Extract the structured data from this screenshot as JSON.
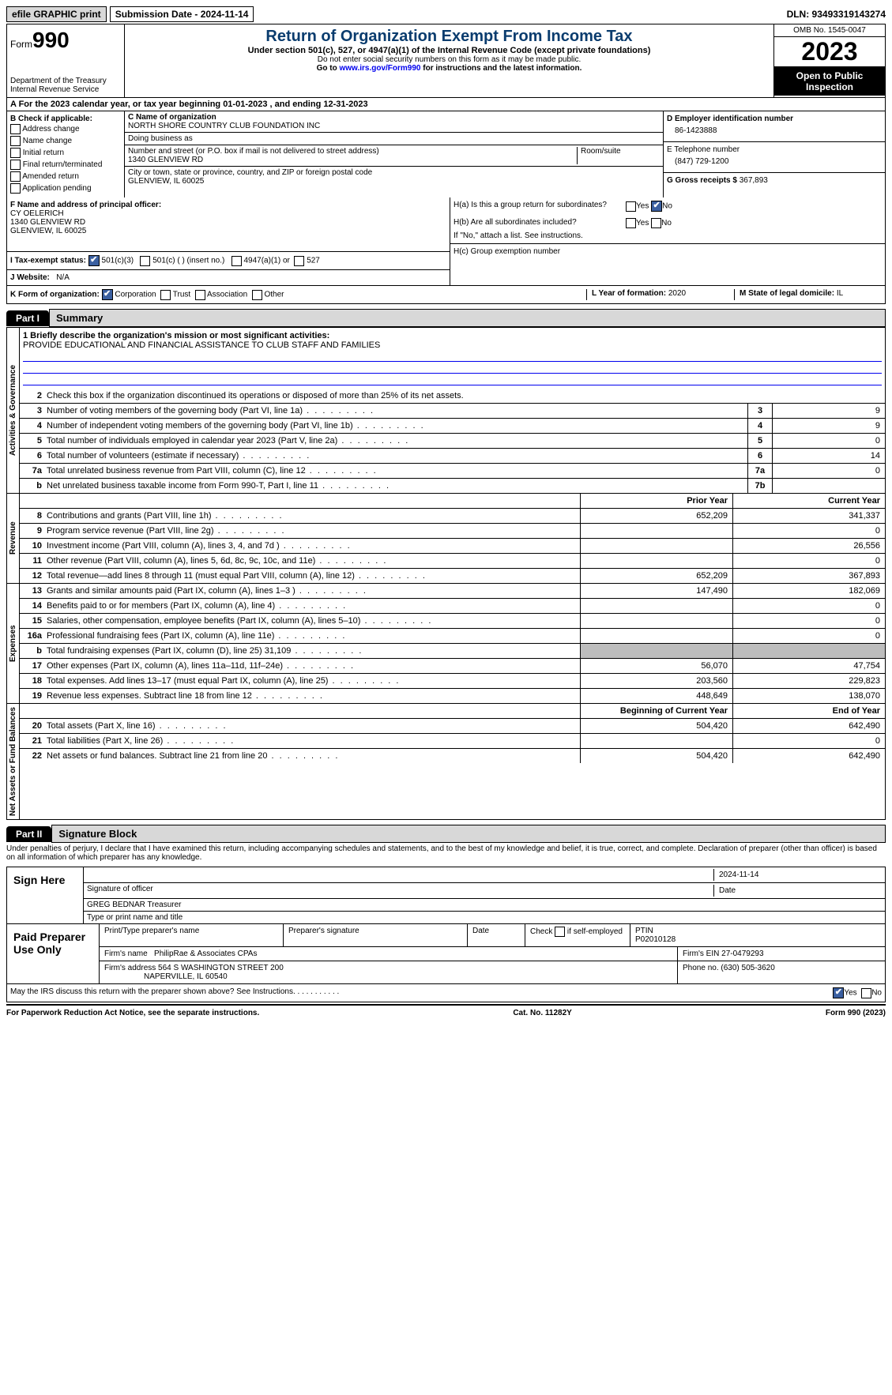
{
  "topbar": {
    "efile": "efile GRAPHIC print",
    "submission": "Submission Date - 2024-11-14",
    "dln": "DLN: 93493319143274"
  },
  "header": {
    "form_label": "Form",
    "form_number": "990",
    "department": "Department of the Treasury",
    "irs": "Internal Revenue Service",
    "title": "Return of Organization Exempt From Income Tax",
    "subtitle": "Under section 501(c), 527, or 4947(a)(1) of the Internal Revenue Code (except private foundations)",
    "note1": "Do not enter social security numbers on this form as it may be made public.",
    "note2_pre": "Go to ",
    "note2_link": "www.irs.gov/Form990",
    "note2_post": " for instructions and the latest information.",
    "omb": "OMB No. 1545-0047",
    "year": "2023",
    "open": "Open to Public Inspection"
  },
  "line_a": "A For the 2023 calendar year, or tax year beginning 01-01-2023   , and ending 12-31-2023",
  "section_b": {
    "label": "B Check if applicable:",
    "opts": [
      "Address change",
      "Name change",
      "Initial return",
      "Final return/terminated",
      "Amended return",
      "Application pending"
    ]
  },
  "section_c": {
    "name_label": "C Name of organization",
    "name": "NORTH SHORE COUNTRY CLUB FOUNDATION INC",
    "dba_label": "Doing business as",
    "dba": "",
    "street_label": "Number and street (or P.O. box if mail is not delivered to street address)",
    "room_label": "Room/suite",
    "street": "1340 GLENVIEW RD",
    "city_label": "City or town, state or province, country, and ZIP or foreign postal code",
    "city": "GLENVIEW, IL  60025"
  },
  "section_d": {
    "label": "D Employer identification number",
    "ein": "86-1423888"
  },
  "section_e": {
    "label": "E Telephone number",
    "phone": "(847) 729-1200"
  },
  "section_g": {
    "label": "G Gross receipts $",
    "amount": "367,893"
  },
  "section_f": {
    "label": "F  Name and address of principal officer:",
    "name": "CY OELERICH",
    "addr1": "1340 GLENVIEW RD",
    "addr2": "GLENVIEW, IL  60025"
  },
  "section_h": {
    "a": "H(a)  Is this a group return for subordinates?",
    "b": "H(b)  Are all subordinates included?",
    "b_note": "If \"No,\" attach a list. See instructions.",
    "c": "H(c)  Group exemption number"
  },
  "row_i": {
    "label": "I   Tax-exempt status:",
    "opt1": "501(c)(3)",
    "opt2": "501(c) (  ) (insert no.)",
    "opt3": "4947(a)(1) or",
    "opt4": "527"
  },
  "row_j": {
    "label": "J   Website:",
    "value": "N/A"
  },
  "row_k": {
    "label": "K Form of organization:",
    "opts": [
      "Corporation",
      "Trust",
      "Association",
      "Other"
    ]
  },
  "row_l": {
    "label": "L Year of formation:",
    "value": "2020"
  },
  "row_m": {
    "label": "M State of legal domicile:",
    "value": "IL"
  },
  "part1": {
    "tab": "Part I",
    "title": "Summary"
  },
  "mission": {
    "label": "1   Briefly describe the organization's mission or most significant activities:",
    "text": "PROVIDE EDUCATIONAL AND FINANCIAL ASSISTANCE TO CLUB STAFF AND FAMILIES"
  },
  "line2": "Check this box      if the organization discontinued its operations or disposed of more than 25% of its net assets.",
  "vlabels": {
    "gov": "Activities & Governance",
    "rev": "Revenue",
    "exp": "Expenses",
    "net": "Net Assets or Fund Balances"
  },
  "gov_lines": [
    {
      "n": "3",
      "t": "Number of voting members of the governing body (Part VI, line 1a)",
      "b": "3",
      "v": "9"
    },
    {
      "n": "4",
      "t": "Number of independent voting members of the governing body (Part VI, line 1b)",
      "b": "4",
      "v": "9"
    },
    {
      "n": "5",
      "t": "Total number of individuals employed in calendar year 2023 (Part V, line 2a)",
      "b": "5",
      "v": "0"
    },
    {
      "n": "6",
      "t": "Total number of volunteers (estimate if necessary)",
      "b": "6",
      "v": "14"
    },
    {
      "n": "7a",
      "t": "Total unrelated business revenue from Part VIII, column (C), line 12",
      "b": "7a",
      "v": "0"
    },
    {
      "n": "b",
      "t": "Net unrelated business taxable income from Form 990-T, Part I, line 11",
      "b": "7b",
      "v": ""
    }
  ],
  "col_headers": {
    "prior": "Prior Year",
    "current": "Current Year",
    "beg": "Beginning of Current Year",
    "end": "End of Year"
  },
  "rev_lines": [
    {
      "n": "8",
      "t": "Contributions and grants (Part VIII, line 1h)",
      "p": "652,209",
      "c": "341,337"
    },
    {
      "n": "9",
      "t": "Program service revenue (Part VIII, line 2g)",
      "p": "",
      "c": "0"
    },
    {
      "n": "10",
      "t": "Investment income (Part VIII, column (A), lines 3, 4, and 7d )",
      "p": "",
      "c": "26,556"
    },
    {
      "n": "11",
      "t": "Other revenue (Part VIII, column (A), lines 5, 6d, 8c, 9c, 10c, and 11e)",
      "p": "",
      "c": "0"
    },
    {
      "n": "12",
      "t": "Total revenue—add lines 8 through 11 (must equal Part VIII, column (A), line 12)",
      "p": "652,209",
      "c": "367,893"
    }
  ],
  "exp_lines": [
    {
      "n": "13",
      "t": "Grants and similar amounts paid (Part IX, column (A), lines 1–3 )",
      "p": "147,490",
      "c": "182,069"
    },
    {
      "n": "14",
      "t": "Benefits paid to or for members (Part IX, column (A), line 4)",
      "p": "",
      "c": "0"
    },
    {
      "n": "15",
      "t": "Salaries, other compensation, employee benefits (Part IX, column (A), lines 5–10)",
      "p": "",
      "c": "0"
    },
    {
      "n": "16a",
      "t": "Professional fundraising fees (Part IX, column (A), line 11e)",
      "p": "",
      "c": "0"
    },
    {
      "n": "b",
      "t": "Total fundraising expenses (Part IX, column (D), line 25) 31,109",
      "p": "grey",
      "c": "grey"
    },
    {
      "n": "17",
      "t": "Other expenses (Part IX, column (A), lines 11a–11d, 11f–24e)",
      "p": "56,070",
      "c": "47,754"
    },
    {
      "n": "18",
      "t": "Total expenses. Add lines 13–17 (must equal Part IX, column (A), line 25)",
      "p": "203,560",
      "c": "229,823"
    },
    {
      "n": "19",
      "t": "Revenue less expenses. Subtract line 18 from line 12",
      "p": "448,649",
      "c": "138,070"
    }
  ],
  "net_lines": [
    {
      "n": "20",
      "t": "Total assets (Part X, line 16)",
      "p": "504,420",
      "c": "642,490"
    },
    {
      "n": "21",
      "t": "Total liabilities (Part X, line 26)",
      "p": "",
      "c": "0"
    },
    {
      "n": "22",
      "t": "Net assets or fund balances. Subtract line 21 from line 20",
      "p": "504,420",
      "c": "642,490"
    }
  ],
  "part2": {
    "tab": "Part II",
    "title": "Signature Block"
  },
  "perjury": "Under penalties of perjury, I declare that I have examined this return, including accompanying schedules and statements, and to the best of my knowledge and belief, it is true, correct, and complete. Declaration of preparer (other than officer) is based on all information of which preparer has any knowledge.",
  "sign": {
    "label": "Sign Here",
    "date": "2024-11-14",
    "sig_label": "Signature of officer",
    "name": "GREG BEDNAR  Treasurer",
    "type_label": "Type or print name and title",
    "date_label": "Date"
  },
  "prep": {
    "label": "Paid Preparer Use Only",
    "h1": "Print/Type preparer's name",
    "h2": "Preparer's signature",
    "h3": "Date",
    "h4_pre": "Check",
    "h4_post": "if self-employed",
    "h5": "PTIN",
    "ptin": "P02010128",
    "firm_name_l": "Firm's name",
    "firm_name": "PhilipRae & Associates CPAs",
    "firm_ein_l": "Firm's EIN",
    "firm_ein": "27-0479293",
    "firm_addr_l": "Firm's address",
    "firm_addr1": "564 S WASHINGTON STREET 200",
    "firm_addr2": "NAPERVILLE, IL  60540",
    "phone_l": "Phone no.",
    "phone": "(630) 505-3620"
  },
  "discuss": "May the IRS discuss this return with the preparer shown above? See Instructions.",
  "footer": {
    "left": "For Paperwork Reduction Act Notice, see the separate instructions.",
    "mid": "Cat. No. 11282Y",
    "right": "Form 990 (2023)"
  },
  "yesno": {
    "yes": "Yes",
    "no": "No"
  }
}
